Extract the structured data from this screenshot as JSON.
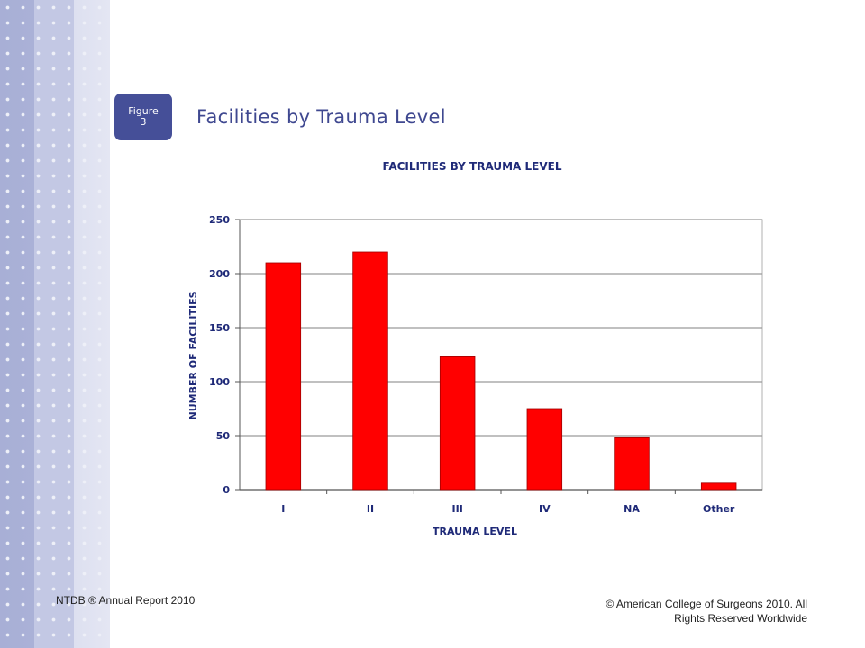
{
  "slide": {
    "badge_line1": "Figure",
    "badge_line2": "3",
    "title": "Facilities by Trauma Level"
  },
  "footer": {
    "left": "NTDB ® Annual Report 2010",
    "right_line1": "© American College of Surgeons 2010.  All",
    "right_line2": "Rights Reserved Worldwide"
  },
  "colors": {
    "bar": "#ff0000",
    "chart_text": "#1f2a78",
    "title": "#3f4890"
  },
  "chart_data": {
    "type": "bar",
    "title": "FACILITIES BY TRAUMA LEVEL",
    "xlabel": "TRAUMA LEVEL",
    "ylabel": "NUMBER OF FACILITIES",
    "categories": [
      "I",
      "II",
      "III",
      "IV",
      "NA",
      "Other"
    ],
    "values": [
      210,
      220,
      123,
      75,
      48,
      6
    ],
    "ylim": [
      0,
      250
    ],
    "yticks": [
      0,
      50,
      100,
      150,
      200,
      250
    ],
    "grid": true,
    "legend": "none"
  }
}
